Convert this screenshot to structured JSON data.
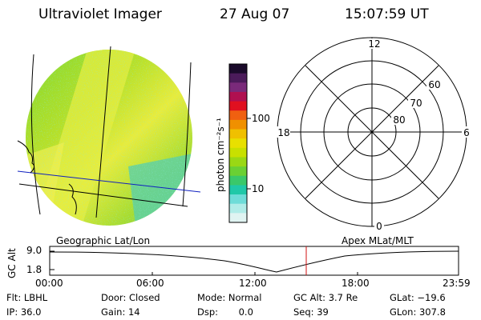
{
  "header": {
    "title": "Ultraviolet Imager",
    "date": "27 Aug 07",
    "time": "15:07:59 UT"
  },
  "colorbar": {
    "label": "photon cm⁻²s⁻¹",
    "ticks": [
      "100",
      "10"
    ],
    "colors": [
      "#1a0a2a",
      "#4b1b5a",
      "#7a2a7a",
      "#b01050",
      "#e01020",
      "#f06010",
      "#f09000",
      "#f0c000",
      "#e8e000",
      "#c8e000",
      "#9ad814",
      "#6ad034",
      "#3ac86a",
      "#20c8a8",
      "#6edcd8",
      "#b0ece8",
      "#e0f4f2"
    ]
  },
  "polar": {
    "labels_clock": {
      "top": "12",
      "left": "18",
      "right": "6",
      "bottom": "0"
    },
    "labels_lat": [
      "60",
      "70",
      "80"
    ]
  },
  "strip": {
    "left_title": "Geographic Lat/Lon",
    "right_title": "Apex MLat/MLT",
    "ylabel": "GC Alt",
    "ytick_top": "9.0",
    "ytick_bottom": "1.8",
    "xticks": [
      "00:00",
      "06:00",
      "12:00",
      "18:00",
      "23:59"
    ]
  },
  "meta": {
    "flt": "Flt: LBHL",
    "door": "Door: Closed",
    "mode": "Mode: Normal",
    "gcalt": "GC Alt: 3.7 Re",
    "glat": "GLat: −19.6",
    "ip": "IP: 36.0",
    "gain": "Gain: 14",
    "dsp": "Dsp:       0.0",
    "seq": "Seq: 39",
    "glon": "GLon: 307.8"
  }
}
